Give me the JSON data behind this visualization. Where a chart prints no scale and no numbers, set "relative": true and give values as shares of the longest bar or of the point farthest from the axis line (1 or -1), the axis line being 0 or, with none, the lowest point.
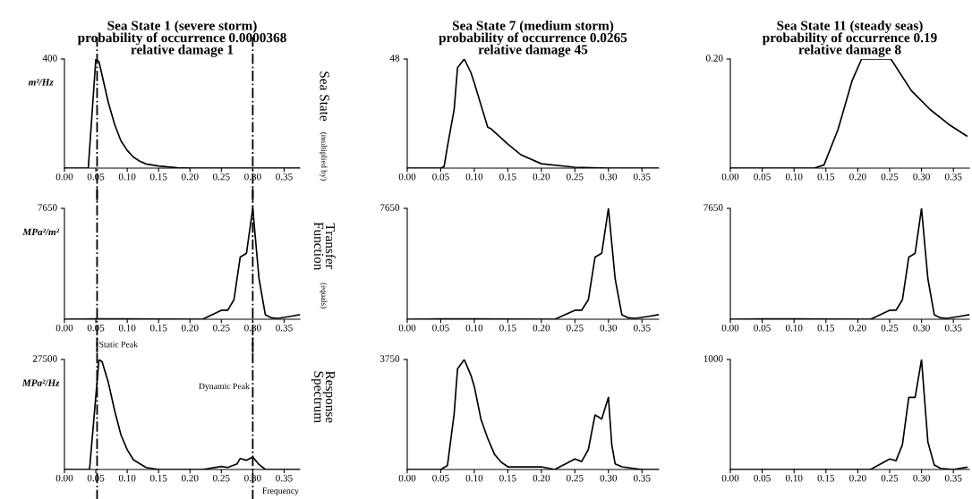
{
  "chart_data": [
    {
      "type": "line",
      "relative": true,
      "title": "Sea State 1 (severe storm)\nprobability of occurrence 0.0000368\nrelative damage 1",
      "ylabel": "m²/Hz",
      "annotations": [
        "400",
        "Sea State",
        "(multiplied by)"
      ],
      "x": [
        0.0,
        0.038,
        0.05,
        0.055,
        0.06,
        0.07,
        0.08,
        0.09,
        0.1,
        0.11,
        0.12,
        0.13,
        0.15,
        0.18,
        0.2,
        0.3,
        0.375
      ],
      "series": [
        {
          "color": "#000000",
          "values": [
            0,
            0,
            1,
            0.975,
            0.85,
            0.6,
            0.4,
            0.25,
            0.163,
            0.1,
            0.063,
            0.038,
            0.02,
            0.003,
            0,
            0,
            0
          ]
        }
      ],
      "xlim": [
        0,
        0.375
      ],
      "xticks": [
        {
          "value": 0,
          "label": "0.00"
        },
        {
          "value": 0.05,
          "label": "0.05"
        },
        {
          "value": 0.1,
          "label": "0.10"
        },
        {
          "value": 0.15,
          "label": "0.15"
        },
        {
          "value": 0.2,
          "label": "0.20"
        },
        {
          "value": 0.25,
          "label": "0.25"
        },
        {
          "value": 0.3,
          "label": "0.30"
        },
        {
          "value": 0.35,
          "label": "0.35"
        }
      ],
      "ref_lines": [
        {
          "axis": "x",
          "value": 0.052,
          "line_style": "dashdot"
        },
        {
          "axis": "x",
          "value": 0.3,
          "line_style": "dashdot"
        }
      ]
    },
    {
      "type": "line",
      "relative": true,
      "title": "Sea State 7 (medium storm)\nprobability of occurrence 0.0265\nrelative damage 45",
      "annotations": [
        "48"
      ],
      "x": [
        0.0,
        0.05,
        0.055,
        0.06,
        0.07,
        0.075,
        0.085,
        0.095,
        0.1,
        0.12,
        0.125,
        0.15,
        0.17,
        0.2,
        0.25,
        0.3,
        0.375
      ],
      "series": [
        {
          "color": "#000000",
          "values": [
            0,
            0,
            0.015,
            0.2,
            0.54,
            0.92,
            1,
            0.875,
            0.78,
            0.375,
            0.36,
            0.22,
            0.12,
            0.04,
            0.008,
            0,
            0
          ]
        }
      ],
      "xlim": [
        0,
        0.375
      ],
      "xticks": [
        {
          "value": 0,
          "label": "0.00"
        },
        {
          "value": 0.05,
          "label": "0.05"
        },
        {
          "value": 0.1,
          "label": "0.10"
        },
        {
          "value": 0.15,
          "label": "0.15"
        },
        {
          "value": 0.2,
          "label": "0.20"
        },
        {
          "value": 0.25,
          "label": "0.25"
        },
        {
          "value": 0.3,
          "label": "0.30"
        },
        {
          "value": 0.35,
          "label": "0.35"
        }
      ]
    },
    {
      "type": "line",
      "relative": true,
      "title": "Sea State 11 (steady seas)\nprobability of occurrence 0.19\nrelative damage 8",
      "annotations": [
        "0.20"
      ],
      "x": [
        0.0,
        0.132,
        0.147,
        0.169,
        0.191,
        0.206,
        0.252,
        0.284,
        0.314,
        0.343,
        0.371
      ],
      "series": [
        {
          "color": "#000000",
          "values": [
            0,
            0,
            0.03,
            0.355,
            0.8,
            1,
            1,
            0.71,
            0.535,
            0.4,
            0.295
          ]
        }
      ],
      "xlim": [
        0,
        0.375
      ],
      "xticks": [
        {
          "value": 0,
          "label": "0.00"
        },
        {
          "value": 0.05,
          "label": "0.05"
        },
        {
          "value": 0.1,
          "label": "0.10"
        },
        {
          "value": 0.15,
          "label": "0.15"
        },
        {
          "value": 0.2,
          "label": "0.20"
        },
        {
          "value": 0.25,
          "label": "0.25"
        },
        {
          "value": 0.3,
          "label": "0.30"
        },
        {
          "value": 0.35,
          "label": "0.35"
        }
      ]
    },
    {
      "type": "line",
      "relative": true,
      "ylabel": "MPa²/m²",
      "annotations": [
        "7650",
        "Transfer\nFunction",
        "(equals)"
      ],
      "x": [
        0.0,
        0.05,
        0.1,
        0.22,
        0.25,
        0.26,
        0.27,
        0.28,
        0.29,
        0.3,
        0.31,
        0.32,
        0.33,
        0.34,
        0.36,
        0.375
      ],
      "series": [
        {
          "color": "#000000",
          "values": [
            0,
            0.004,
            0.003,
            0,
            0.081,
            0.081,
            0.175,
            0.56,
            0.595,
            1,
            0.365,
            0.041,
            0.013,
            0.008,
            0.026,
            0.041
          ]
        }
      ],
      "xlim": [
        0,
        0.375
      ],
      "xticks": [
        {
          "value": 0,
          "label": "0.00"
        },
        {
          "value": 0.05,
          "label": "0.05"
        },
        {
          "value": 0.1,
          "label": "0.10"
        },
        {
          "value": 0.15,
          "label": "0.15"
        },
        {
          "value": 0.2,
          "label": "0.20"
        },
        {
          "value": 0.25,
          "label": "0.25"
        },
        {
          "value": 0.3,
          "label": "0.30"
        },
        {
          "value": 0.35,
          "label": "0.35"
        }
      ],
      "ref_lines": [
        {
          "axis": "x",
          "value": 0.052,
          "line_style": "dashdot"
        },
        {
          "axis": "x",
          "value": 0.3,
          "line_style": "dashdot"
        }
      ]
    },
    {
      "type": "line",
      "relative": true,
      "annotations": [
        "7650"
      ],
      "x": [
        0.0,
        0.05,
        0.1,
        0.22,
        0.25,
        0.26,
        0.27,
        0.28,
        0.29,
        0.3,
        0.31,
        0.32,
        0.33,
        0.34,
        0.36,
        0.375
      ],
      "series": [
        {
          "color": "#000000",
          "values": [
            0,
            0.004,
            0.003,
            0,
            0.081,
            0.081,
            0.175,
            0.56,
            0.595,
            1,
            0.365,
            0.041,
            0.013,
            0.008,
            0.026,
            0.041
          ]
        }
      ],
      "xlim": [
        0,
        0.375
      ],
      "xticks": [
        {
          "value": 0,
          "label": "0.00"
        },
        {
          "value": 0.05,
          "label": "0.05"
        },
        {
          "value": 0.1,
          "label": "0.10"
        },
        {
          "value": 0.15,
          "label": "0.15"
        },
        {
          "value": 0.2,
          "label": "0.20"
        },
        {
          "value": 0.25,
          "label": "0.25"
        },
        {
          "value": 0.3,
          "label": "0.30"
        },
        {
          "value": 0.35,
          "label": "0.35"
        }
      ]
    },
    {
      "type": "line",
      "relative": true,
      "annotations": [
        "7650"
      ],
      "x": [
        0.0,
        0.05,
        0.1,
        0.22,
        0.25,
        0.26,
        0.27,
        0.28,
        0.29,
        0.3,
        0.31,
        0.32,
        0.33,
        0.34,
        0.36,
        0.375
      ],
      "series": [
        {
          "color": "#000000",
          "values": [
            0,
            0.004,
            0.003,
            0,
            0.081,
            0.081,
            0.175,
            0.56,
            0.595,
            1,
            0.365,
            0.041,
            0.013,
            0.008,
            0.026,
            0.041
          ]
        }
      ],
      "xlim": [
        0,
        0.375
      ],
      "xticks": [
        {
          "value": 0,
          "label": "0.00"
        },
        {
          "value": 0.05,
          "label": "0.05"
        },
        {
          "value": 0.1,
          "label": "0.10"
        },
        {
          "value": 0.15,
          "label": "0.15"
        },
        {
          "value": 0.2,
          "label": "0.20"
        },
        {
          "value": 0.25,
          "label": "0.25"
        },
        {
          "value": 0.3,
          "label": "0.30"
        },
        {
          "value": 0.35,
          "label": "0.35"
        }
      ]
    },
    {
      "type": "line",
      "relative": true,
      "ylabel": "MPa²/Hz",
      "xlabel": "Frequency",
      "annotations": [
        "27500",
        "Response\nSpectrum"
      ],
      "x": [
        0.0,
        0.04,
        0.055,
        0.06,
        0.07,
        0.08,
        0.09,
        0.1,
        0.11,
        0.13,
        0.15,
        0.22,
        0.25,
        0.26,
        0.275,
        0.28,
        0.29,
        0.3,
        0.31,
        0.32,
        0.375
      ],
      "series": [
        {
          "color": "#000000",
          "values": [
            0,
            0,
            1,
            0.98,
            0.79,
            0.535,
            0.315,
            0.18,
            0.087,
            0.018,
            0,
            0,
            0.027,
            0.018,
            0.051,
            0.1,
            0.084,
            0.113,
            0.045,
            0,
            0
          ]
        }
      ],
      "xlim": [
        0,
        0.375
      ],
      "xticks": [
        {
          "value": 0,
          "label": "0.00"
        },
        {
          "value": 0.05,
          "label": "0.05"
        },
        {
          "value": 0.1,
          "label": "0.10"
        },
        {
          "value": 0.15,
          "label": "0.15"
        },
        {
          "value": 0.2,
          "label": "0.20"
        },
        {
          "value": 0.25,
          "label": "0.25"
        },
        {
          "value": 0.3,
          "label": "0.30"
        },
        {
          "value": 0.35,
          "label": "0.35"
        }
      ],
      "ref_lines": [
        {
          "axis": "x",
          "value": 0.052,
          "label": "Static Peak",
          "line_style": "dashdot"
        },
        {
          "axis": "x",
          "value": 0.3,
          "label": "Dynamic Peak",
          "line_style": "dashdot"
        }
      ]
    },
    {
      "type": "line",
      "relative": true,
      "annotations": [
        "3750"
      ],
      "x": [
        0.0,
        0.05,
        0.06,
        0.07,
        0.075,
        0.085,
        0.095,
        0.1,
        0.11,
        0.12,
        0.13,
        0.14,
        0.15,
        0.2,
        0.22,
        0.25,
        0.26,
        0.27,
        0.28,
        0.29,
        0.3,
        0.305,
        0.31,
        0.32,
        0.35,
        0.375
      ],
      "series": [
        {
          "color": "#000000",
          "values": [
            0,
            0,
            0.037,
            0.51,
            0.915,
            1,
            0.855,
            0.755,
            0.455,
            0.283,
            0.139,
            0.067,
            0.024,
            0.024,
            0,
            0.096,
            0.072,
            0.181,
            0.496,
            0.459,
            0.656,
            0.224,
            0.051,
            0.024,
            0,
            0
          ]
        }
      ],
      "xlim": [
        0,
        0.375
      ],
      "xticks": [
        {
          "value": 0,
          "label": "0.00"
        },
        {
          "value": 0.05,
          "label": "0.05"
        },
        {
          "value": 0.1,
          "label": "0.10"
        },
        {
          "value": 0.15,
          "label": "0.15"
        },
        {
          "value": 0.2,
          "label": "0.20"
        },
        {
          "value": 0.25,
          "label": "0.25"
        },
        {
          "value": 0.3,
          "label": "0.30"
        },
        {
          "value": 0.35,
          "label": "0.35"
        }
      ]
    },
    {
      "type": "line",
      "relative": true,
      "annotations": [
        "1000"
      ],
      "x": [
        0.0,
        0.22,
        0.25,
        0.26,
        0.27,
        0.28,
        0.29,
        0.3,
        0.31,
        0.32,
        0.33,
        0.35,
        0.371
      ],
      "series": [
        {
          "color": "#000000",
          "values": [
            0,
            0,
            0.095,
            0.08,
            0.225,
            0.655,
            0.655,
            1,
            0.25,
            0.04,
            0.01,
            0,
            0.02
          ]
        }
      ],
      "xlim": [
        0,
        0.375
      ],
      "xticks": [
        {
          "value": 0,
          "label": "0.00"
        },
        {
          "value": 0.05,
          "label": "0.05"
        },
        {
          "value": 0.1,
          "label": "0.10"
        },
        {
          "value": 0.15,
          "label": "0.15"
        },
        {
          "value": 0.2,
          "label": "0.20"
        },
        {
          "value": 0.25,
          "label": "0.25"
        },
        {
          "value": 0.3,
          "label": "0.30"
        },
        {
          "value": 0.35,
          "label": "0.35"
        }
      ]
    }
  ]
}
